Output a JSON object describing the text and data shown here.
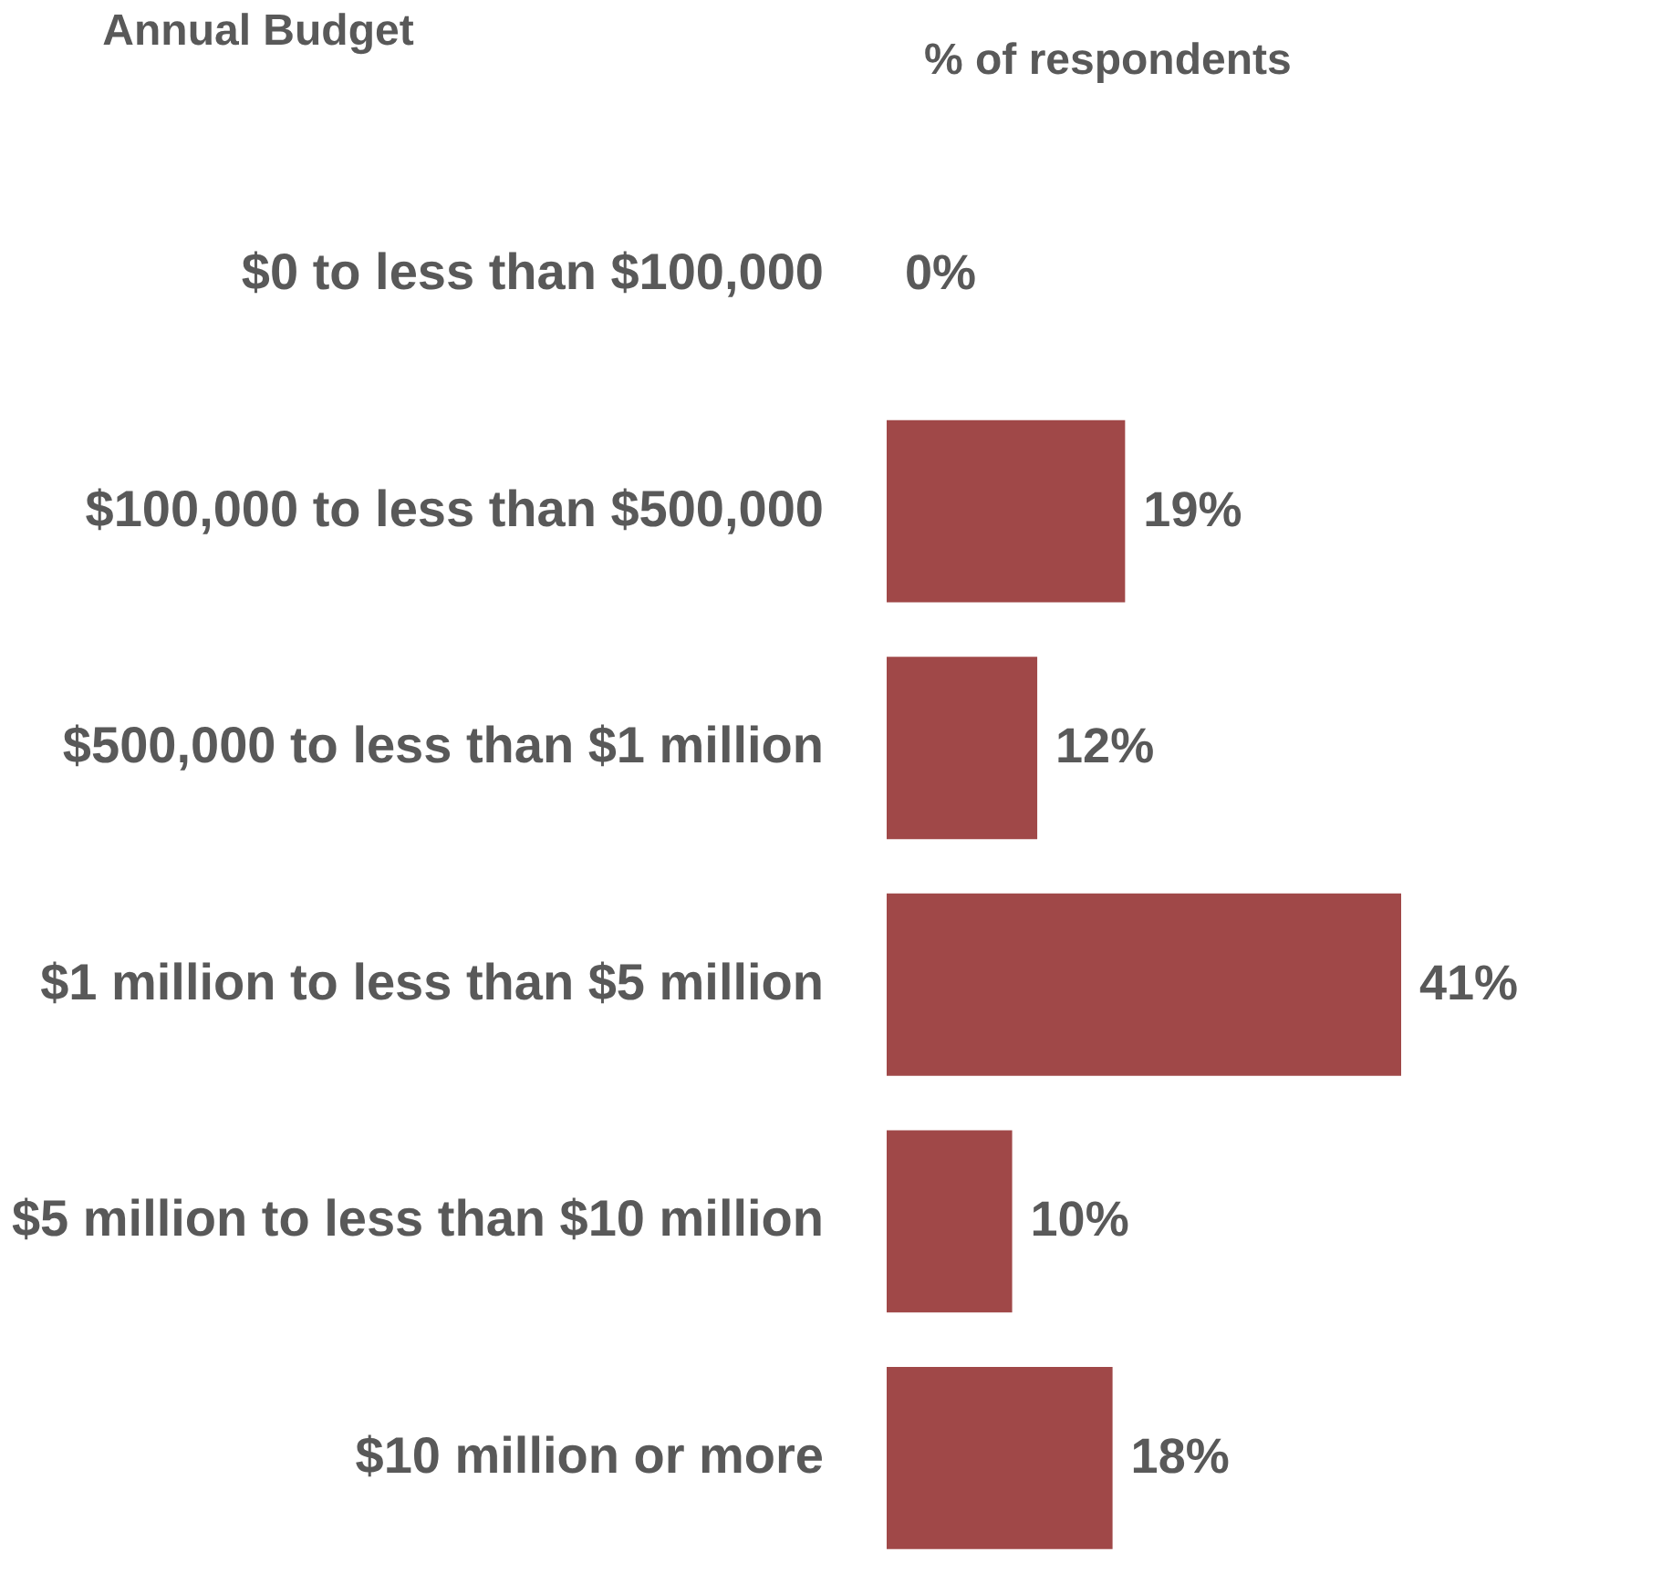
{
  "chart_data": {
    "type": "bar",
    "orientation": "horizontal",
    "ylabel": "Annual Budget",
    "xlabel": "% of respondents",
    "categories": [
      "$0 to less than $100,000",
      "$100,000 to less than $500,000",
      "$500,000 to less than $1 million",
      "$1 million to less than $5 million",
      "$5 million to less than $10 million",
      "$10 million  or more"
    ],
    "values": [
      0,
      19,
      12,
      41,
      10,
      18
    ],
    "value_labels": [
      "0%",
      "19%",
      "12%",
      "41%",
      "10%",
      "18%"
    ],
    "color": "#a04848",
    "xlim": [
      0,
      41
    ],
    "tick_labels": "y",
    "grid": false
  }
}
